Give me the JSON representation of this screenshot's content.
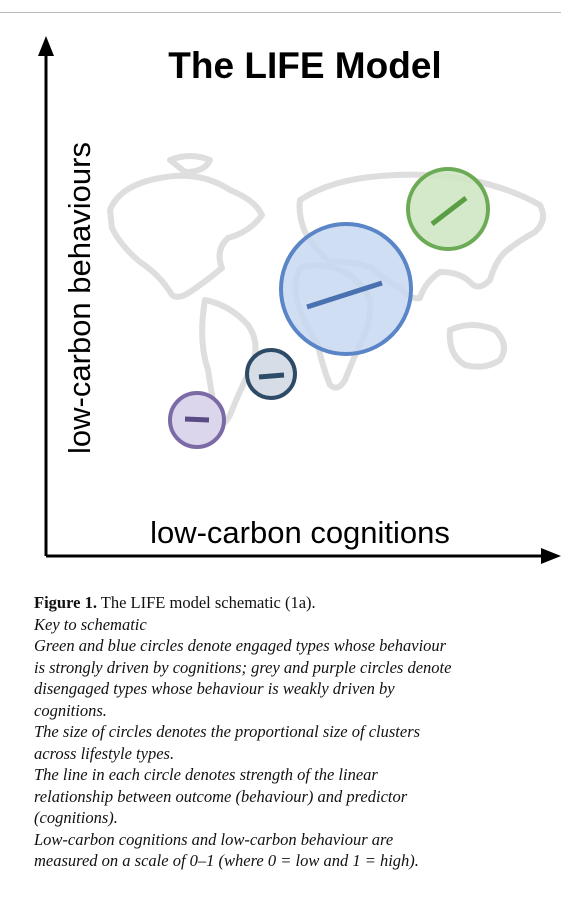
{
  "figure": {
    "title": "The LIFE Model",
    "y_label": "low-carbon behaviours",
    "x_label": "low-carbon cognitions"
  },
  "caption": {
    "label": "Figure 1.",
    "text": "The LIFE model schematic (1a).",
    "key_heading": "Key to schematic",
    "notes": [
      [
        "Green and blue circles denote engaged types whose behaviour",
        "is strongly driven by cognitions; grey and purple circles denote",
        "disengaged types whose behaviour is weakly driven by",
        "cognitions."
      ],
      [
        "The size of circles denotes the proportional size of clusters",
        "across lifestyle types."
      ],
      [
        "The line in each circle denotes strength of the linear",
        "relationship between outcome (behaviour) and predictor",
        "(cognitions)."
      ],
      [
        "Low-carbon cognitions and low-carbon behaviour are",
        "measured on a scale of 0–1 (where 0 = low and 1 = high)."
      ]
    ]
  }
}
